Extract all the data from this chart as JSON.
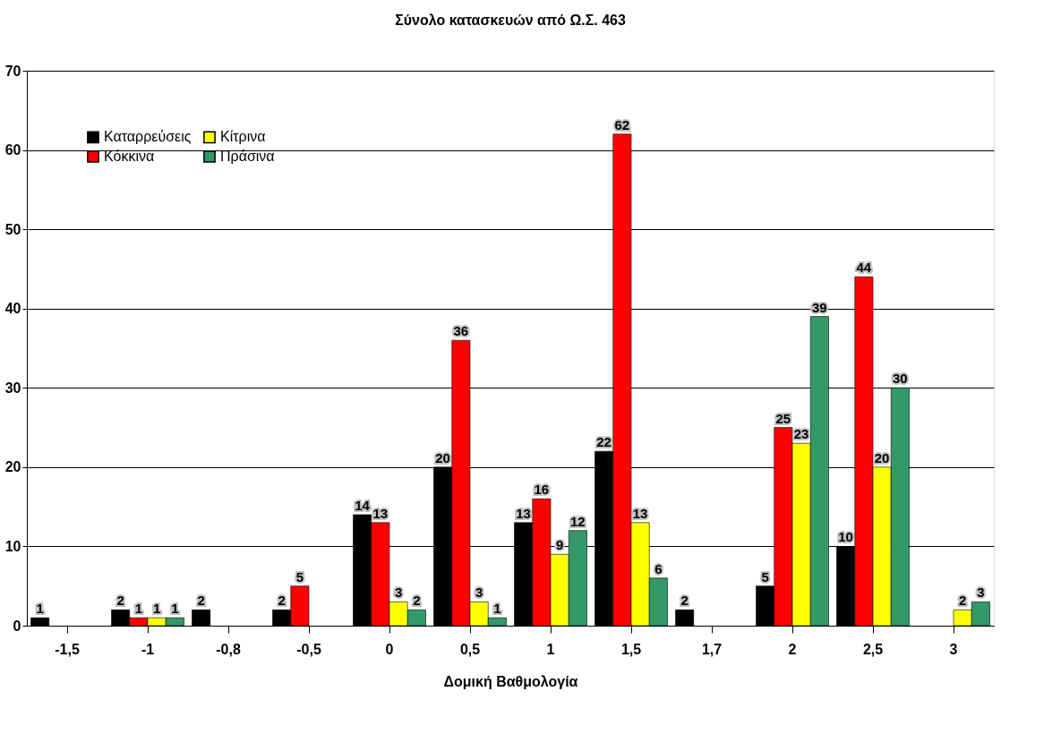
{
  "chart_data": {
    "type": "bar",
    "title": "Σύνολο κατασκευών από Ω.Σ. 463",
    "xlabel": "Δομική Βαθμολογία",
    "categories": [
      "-1,5",
      "-1",
      "-0,8",
      "-0,5",
      "0",
      "0,5",
      "1",
      "1,5",
      "1,7",
      "2",
      "2,5",
      "3"
    ],
    "series": [
      {
        "name": "Καταρρεύσεις",
        "color": "#000000",
        "values": [
          1,
          2,
          2,
          2,
          14,
          20,
          13,
          22,
          2,
          5,
          10,
          null
        ]
      },
      {
        "name": "Κόκκινα",
        "color": "#ff0000",
        "values": [
          null,
          1,
          null,
          5,
          13,
          36,
          16,
          62,
          null,
          25,
          44,
          null
        ]
      },
      {
        "name": "Κίτρινα",
        "color": "#ffff00",
        "values": [
          null,
          1,
          null,
          null,
          3,
          3,
          9,
          13,
          null,
          23,
          20,
          2
        ]
      },
      {
        "name": "Πράσινα",
        "color": "#339966",
        "values": [
          null,
          1,
          null,
          null,
          2,
          1,
          12,
          6,
          null,
          39,
          30,
          3
        ]
      }
    ],
    "ylim": [
      0,
      70
    ],
    "yticks": [
      0,
      10,
      20,
      30,
      40,
      50,
      60,
      70
    ],
    "grid": "y",
    "legend": "top left",
    "data_labels": true
  }
}
